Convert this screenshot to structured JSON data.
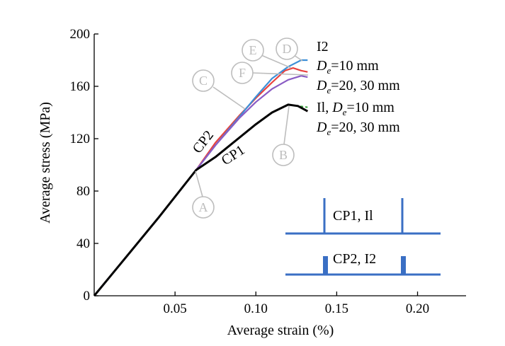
{
  "chart_data": {
    "type": "line",
    "xlabel": "Average strain (%)",
    "ylabel": "Average stress (MPa)",
    "xlim": [
      0,
      0.23
    ],
    "ylim": [
      0,
      200
    ],
    "x_ticks": [
      0.05,
      0.1,
      0.15,
      0.2
    ],
    "x_tick_labels": [
      "0.05",
      "0.10",
      "0.15",
      "0.20"
    ],
    "y_ticks": [
      0,
      40,
      80,
      120,
      160,
      200
    ],
    "y_tick_labels": [
      "0",
      "40",
      "80",
      "120",
      "160",
      "200"
    ],
    "series": [
      {
        "name": "I2, De=10 mm",
        "color": "#e8423f",
        "group": "I2",
        "x": [
          0,
          0.02,
          0.04,
          0.063,
          0.075,
          0.09,
          0.1,
          0.11,
          0.118,
          0.123,
          0.128,
          0.132
        ],
        "y": [
          0,
          30,
          60,
          96,
          117,
          138,
          151,
          163,
          172,
          174,
          172,
          171
        ]
      },
      {
        "name": "I2, De=20 mm",
        "color": "#3c8fd8",
        "group": "I2",
        "x": [
          0,
          0.02,
          0.04,
          0.063,
          0.075,
          0.09,
          0.1,
          0.11,
          0.12,
          0.128,
          0.132
        ],
        "y": [
          0,
          30,
          60,
          96,
          115,
          137,
          152,
          166,
          175,
          180,
          180
        ]
      },
      {
        "name": "I2, De=30 mm",
        "color": "#8a5cc4",
        "group": "I2",
        "x": [
          0,
          0.02,
          0.04,
          0.063,
          0.075,
          0.09,
          0.1,
          0.11,
          0.12,
          0.128,
          0.132
        ],
        "y": [
          0,
          30,
          60,
          96,
          115,
          136,
          148,
          158,
          165,
          168,
          167
        ]
      },
      {
        "name": "I1, De=10 mm",
        "color": "#e8423f",
        "group": "I1",
        "x": [
          0,
          0.02,
          0.04,
          0.063,
          0.075,
          0.09,
          0.1,
          0.11,
          0.12,
          0.126,
          0.132
        ],
        "y": [
          0,
          30,
          60,
          96,
          106,
          121,
          131,
          140,
          146,
          145,
          141
        ]
      },
      {
        "name": "I1, De=20 mm",
        "color": "#37a33c",
        "group": "I1",
        "x": [
          0,
          0.02,
          0.04,
          0.063,
          0.075,
          0.09,
          0.1,
          0.11,
          0.12,
          0.126,
          0.132
        ],
        "y": [
          0,
          30,
          60,
          96,
          106,
          121,
          131,
          140,
          146,
          145,
          144
        ]
      },
      {
        "name": "I1, De=30 mm",
        "color": "#000000",
        "group": "I1",
        "x": [
          0,
          0.02,
          0.04,
          0.063,
          0.075,
          0.09,
          0.1,
          0.11,
          0.12,
          0.126,
          0.132
        ],
        "y": [
          0,
          30,
          60,
          96,
          106,
          121,
          131,
          140,
          146,
          145,
          141
        ]
      }
    ],
    "annotations": {
      "cp2": "CP2",
      "cp1": "CP1",
      "label_i2": "I2",
      "label_i2_de10": "=10 mm",
      "label_i2_de2030": "=20, 30 mm",
      "label_i1_prefix": "Il, ",
      "label_i1_de10": "=10 mm",
      "label_i1_de2030": "=20, 30 mm",
      "de_main": "D",
      "de_sub": "e"
    },
    "markers": [
      {
        "label": "A",
        "x": 0.063,
        "y": 96
      },
      {
        "label": "B",
        "x": 0.12,
        "y": 146
      },
      {
        "label": "C",
        "x": 0.092,
        "y": 140
      },
      {
        "label": "D",
        "x": 0.128,
        "y": 180
      },
      {
        "label": "E",
        "x": 0.124,
        "y": 175
      },
      {
        "label": "F",
        "x": 0.128,
        "y": 168
      }
    ],
    "inset": {
      "top_label": "CP1, Il",
      "bottom_label": "CP2, I2",
      "color": "#3a6fc4"
    }
  }
}
